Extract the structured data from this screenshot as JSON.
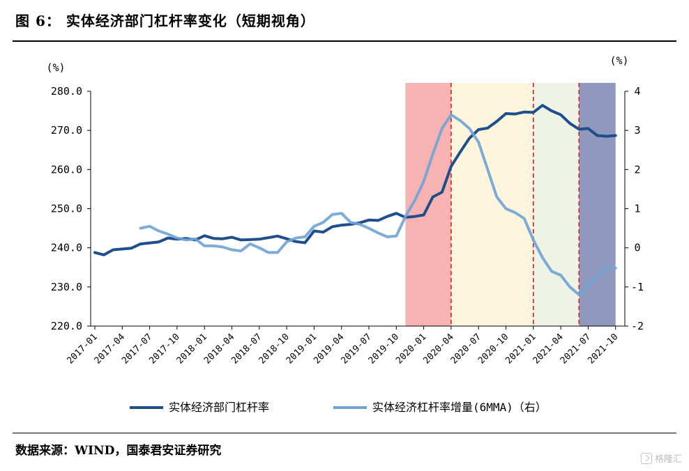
{
  "header": {
    "title": "图 6：   实体经济部门杠杆率变化（短期视角）"
  },
  "footer": {
    "source": "数据来源：WIND，国泰君安证券研究",
    "watermark": "格隆汇"
  },
  "colors": {
    "series1": "#1f4e8c",
    "series2": "#6fa3d6",
    "red_band": "#f7b2b2",
    "yellow_band": "#fdf6dd",
    "green_band": "#eef3e5",
    "blue_band": "#8e99bd",
    "divider": "#e0191f"
  },
  "chart_data": {
    "type": "line",
    "left_axis_unit": "(%)",
    "right_axis_unit": "(%)",
    "y_left": {
      "min": 220,
      "max": 280,
      "ticks": [
        "280.0",
        "270.0",
        "260.0",
        "250.0",
        "240.0",
        "230.0",
        "220.0"
      ]
    },
    "y_right": {
      "min": -2,
      "max": 4,
      "ticks": [
        "4",
        "3",
        "2",
        "1",
        "0",
        "-1",
        "-2"
      ]
    },
    "x_ticks": [
      "2017-01",
      "2017-04",
      "2017-07",
      "2017-10",
      "2018-01",
      "2018-04",
      "2018-07",
      "2018-10",
      "2019-01",
      "2019-04",
      "2019-07",
      "2019-10",
      "2020-01",
      "2020-04",
      "2020-07",
      "2020-10",
      "2021-01",
      "2021-04",
      "2021-07",
      "2021-10"
    ],
    "grid": false,
    "legend_position": "bottom",
    "bands": [
      {
        "from": "2019-11",
        "to": "2020-04",
        "color": "red_band"
      },
      {
        "from": "2020-04",
        "to": "2021-01",
        "color": "yellow_band"
      },
      {
        "from": "2021-01",
        "to": "2021-06",
        "color": "green_band"
      },
      {
        "from": "2021-06",
        "to": "2021-10",
        "color": "blue_band"
      }
    ],
    "dashed_dividers": [
      "2020-04",
      "2021-01",
      "2021-06"
    ],
    "series": [
      {
        "name": "实体经济部门杠杆率",
        "axis": "left",
        "color": "series1",
        "points": [
          [
            "2017-01",
            238.8
          ],
          [
            "2017-02",
            238.2
          ],
          [
            "2017-03",
            239.5
          ],
          [
            "2017-05",
            239.9
          ],
          [
            "2017-06",
            241.0
          ],
          [
            "2017-08",
            241.5
          ],
          [
            "2017-09",
            242.5
          ],
          [
            "2017-10",
            242.2
          ],
          [
            "2017-11",
            242.4
          ],
          [
            "2017-12",
            242.0
          ],
          [
            "2018-01",
            243.1
          ],
          [
            "2018-02",
            242.4
          ],
          [
            "2018-03",
            242.3
          ],
          [
            "2018-04",
            242.7
          ],
          [
            "2018-05",
            242.0
          ],
          [
            "2018-06",
            242.1
          ],
          [
            "2018-07",
            242.2
          ],
          [
            "2018-08",
            242.6
          ],
          [
            "2018-09",
            243.0
          ],
          [
            "2018-10",
            242.3
          ],
          [
            "2018-11",
            241.6
          ],
          [
            "2018-12",
            241.3
          ],
          [
            "2019-01",
            244.3
          ],
          [
            "2019-02",
            244.0
          ],
          [
            "2019-03",
            245.4
          ],
          [
            "2019-04",
            245.8
          ],
          [
            "2019-05",
            246.0
          ],
          [
            "2019-06",
            246.4
          ],
          [
            "2019-07",
            247.1
          ],
          [
            "2019-08",
            247.0
          ],
          [
            "2019-09",
            248.0
          ],
          [
            "2019-10",
            248.8
          ],
          [
            "2019-11",
            247.8
          ],
          [
            "2019-12",
            248.0
          ],
          [
            "2020-01",
            248.4
          ],
          [
            "2020-02",
            253.0
          ],
          [
            "2020-03",
            254.2
          ],
          [
            "2020-04",
            260.8
          ],
          [
            "2020-05",
            264.5
          ],
          [
            "2020-06",
            268.0
          ],
          [
            "2020-07",
            270.2
          ],
          [
            "2020-08",
            270.6
          ],
          [
            "2020-09",
            272.3
          ],
          [
            "2020-10",
            274.3
          ],
          [
            "2020-11",
            274.2
          ],
          [
            "2020-12",
            274.7
          ],
          [
            "2021-01",
            274.6
          ],
          [
            "2021-02",
            276.4
          ],
          [
            "2021-03",
            275.0
          ],
          [
            "2021-04",
            274.0
          ],
          [
            "2021-05",
            271.8
          ],
          [
            "2021-06",
            270.3
          ],
          [
            "2021-07",
            270.5
          ],
          [
            "2021-08",
            268.7
          ],
          [
            "2021-09",
            268.5
          ],
          [
            "2021-10",
            268.7
          ]
        ]
      },
      {
        "name": "实体经济杠杆率增量(6MMA)（右）",
        "axis": "right",
        "color": "series2",
        "points": [
          [
            "2017-06",
            0.5
          ],
          [
            "2017-07",
            0.55
          ],
          [
            "2017-08",
            0.43
          ],
          [
            "2017-09",
            0.35
          ],
          [
            "2017-10",
            0.25
          ],
          [
            "2017-11",
            0.2
          ],
          [
            "2017-12",
            0.23
          ],
          [
            "2018-01",
            0.05
          ],
          [
            "2018-02",
            0.05
          ],
          [
            "2018-03",
            0.02
          ],
          [
            "2018-04",
            -0.05
          ],
          [
            "2018-05",
            -0.08
          ],
          [
            "2018-06",
            0.1
          ],
          [
            "2018-07",
            0.0
          ],
          [
            "2018-08",
            -0.12
          ],
          [
            "2018-09",
            -0.12
          ],
          [
            "2018-10",
            0.15
          ],
          [
            "2018-11",
            0.25
          ],
          [
            "2018-12",
            0.28
          ],
          [
            "2019-01",
            0.55
          ],
          [
            "2019-02",
            0.65
          ],
          [
            "2019-03",
            0.85
          ],
          [
            "2019-04",
            0.88
          ],
          [
            "2019-05",
            0.65
          ],
          [
            "2019-06",
            0.6
          ],
          [
            "2019-07",
            0.5
          ],
          [
            "2019-08",
            0.38
          ],
          [
            "2019-09",
            0.28
          ],
          [
            "2019-10",
            0.3
          ],
          [
            "2019-11",
            0.8
          ],
          [
            "2019-12",
            1.2
          ],
          [
            "2020-01",
            1.7
          ],
          [
            "2020-02",
            2.4
          ],
          [
            "2020-03",
            3.05
          ],
          [
            "2020-04",
            3.4
          ],
          [
            "2020-05",
            3.25
          ],
          [
            "2020-06",
            3.05
          ],
          [
            "2020-07",
            2.7
          ],
          [
            "2020-08",
            2.0
          ],
          [
            "2020-09",
            1.3
          ],
          [
            "2020-10",
            1.0
          ],
          [
            "2020-11",
            0.9
          ],
          [
            "2020-12",
            0.75
          ],
          [
            "2021-01",
            0.2
          ],
          [
            "2021-02",
            -0.25
          ],
          [
            "2021-03",
            -0.6
          ],
          [
            "2021-04",
            -0.7
          ],
          [
            "2021-05",
            -1.0
          ],
          [
            "2021-06",
            -1.2
          ],
          [
            "2021-07",
            -0.95
          ],
          [
            "2021-08",
            -0.75
          ],
          [
            "2021-09",
            -0.5
          ],
          [
            "2021-10",
            -0.52
          ]
        ]
      }
    ]
  }
}
